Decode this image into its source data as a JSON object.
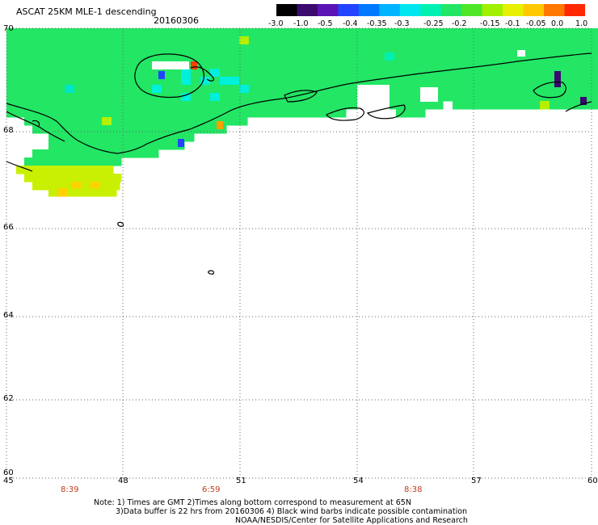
{
  "header": {
    "title": "ASCAT 25KM MLE-1 descending",
    "date": "20160306"
  },
  "colorbar": {
    "labels": [
      "-3.0",
      "-1.0",
      "-0.5",
      "-0.4",
      "-0.35",
      "-0.3",
      "-0.25",
      "-0.2",
      "-0.15",
      "-0.1",
      "-0.05",
      "0.0",
      "1.0"
    ],
    "colors": [
      "#000000",
      "#3a0a6e",
      "#5a14b4",
      "#2244ff",
      "#0078ff",
      "#00b4ff",
      "#00e6f0",
      "#00f0b4",
      "#22e664",
      "#50e628",
      "#a0f000",
      "#e6f000",
      "#ffc800",
      "#ff7800",
      "#ff2800"
    ]
  },
  "axes": {
    "y_labels": [
      "70",
      "68",
      "66",
      "64",
      "62",
      "60"
    ],
    "x_labels": [
      "45",
      "48",
      "51",
      "54",
      "57",
      "60"
    ],
    "lat_range": [
      60,
      70
    ],
    "lon_range": [
      45,
      60
    ]
  },
  "times": [
    "8:39",
    "6:59",
    "8:38"
  ],
  "notes": {
    "line1": "Note: 1) Times are GMT 2)Times along bottom correspond to measurement at 65N",
    "line2": "3)Data buffer is 22 hrs from 20160306 4) Black wind barbs indicate possible contamination",
    "line3": "NOAA/NESDIS/Center for Satellite Applications and Research"
  }
}
